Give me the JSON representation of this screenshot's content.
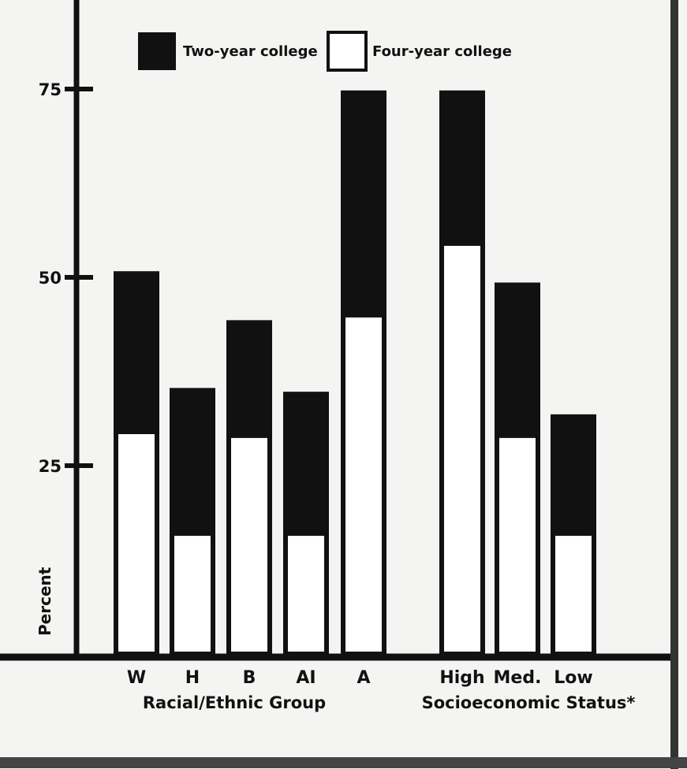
{
  "chart_data": {
    "type": "bar",
    "stacked": true,
    "ylabel": "Percent",
    "ylim": [
      0,
      75
    ],
    "yticks": [
      25,
      50,
      75
    ],
    "categories": [
      "W",
      "H",
      "B",
      "AI",
      "A",
      "High",
      "Med.",
      "Low"
    ],
    "groups": [
      {
        "label": "Racial/Ethnic Group",
        "categories": [
          "W",
          "H",
          "B",
          "AI",
          "A"
        ]
      },
      {
        "label": "Socioeconomic Status*",
        "categories": [
          "High",
          "Med.",
          "Low"
        ]
      }
    ],
    "series": [
      {
        "name": "Four-year college",
        "color": "#ffffff",
        "values": [
          29.5,
          16,
          29,
          16,
          45,
          54.5,
          29,
          16
        ]
      },
      {
        "name": "Two-year college",
        "color": "#111111",
        "values": [
          21,
          19,
          15,
          18.5,
          29.5,
          20,
          20,
          15.5
        ]
      }
    ],
    "legend": {
      "position": "top"
    }
  }
}
